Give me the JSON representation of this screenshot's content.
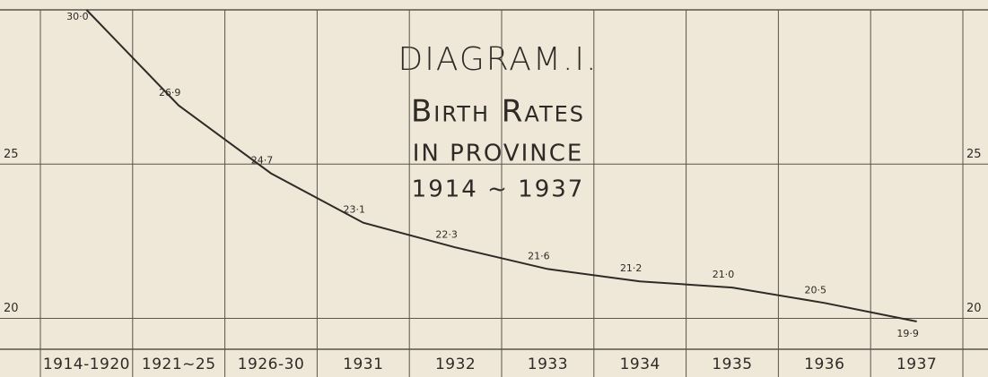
{
  "chart_data": {
    "type": "line",
    "title": "DIAGRAM.I.",
    "subtitle": [
      "Birth Rates",
      "IN PROVINCE",
      "1914 ~ 1937"
    ],
    "categories": [
      "1914-1920",
      "1921~25",
      "1926-30",
      "1931",
      "1932",
      "1933",
      "1934",
      "1935",
      "1936",
      "1937"
    ],
    "values": [
      30.0,
      26.9,
      24.7,
      23.1,
      22.3,
      21.6,
      21.2,
      21.0,
      20.5,
      19.9
    ],
    "value_labels": [
      "30·0",
      "26·9",
      "24·7",
      "23·1",
      "22·3",
      "21·6",
      "21·2",
      "21·0",
      "20·5",
      "19·9"
    ],
    "color": "#2e2a26",
    "ylim": [
      19,
      30
    ],
    "yticks": [
      20,
      25
    ],
    "grid": true
  }
}
